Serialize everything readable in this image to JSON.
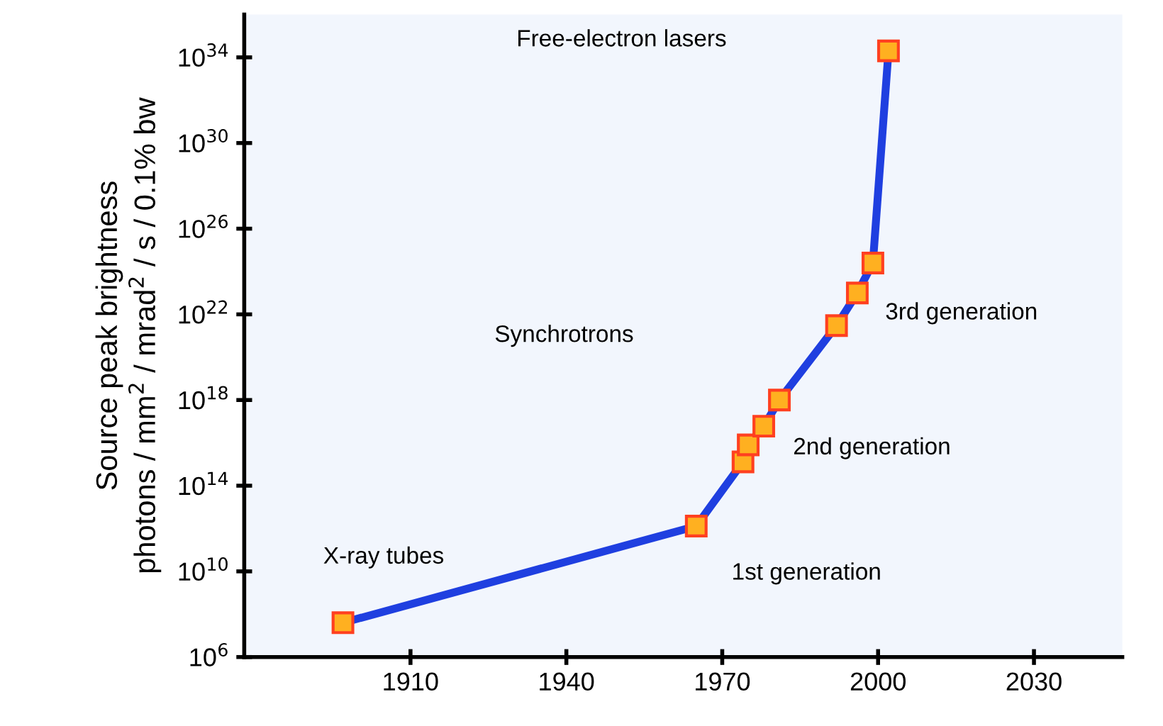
{
  "chart_data": {
    "type": "line",
    "ylabel": "Source peak brightness\nphotons / mm$^{2}$ / mrad$^{2}$ / s / 0.1% bw",
    "x": [
      1897,
      1965,
      1974,
      1975,
      1978,
      1981,
      1992,
      1996,
      1999,
      2002
    ],
    "series": [
      {
        "color": "#1f3fe0",
        "values": [
          40000000.0,
          1300000000000.0,
          1300000000000000.0,
          8000000000000000.0,
          6e+16,
          1e+18,
          3e+21,
          1e+23,
          2.5e+24,
          2e+34
        ]
      }
    ],
    "log": "y",
    "marker": "square",
    "line_style": "solid",
    "grid": false,
    "legend": false,
    "xlim": [
      1878,
      2047
    ],
    "xticks": [
      1910,
      1940,
      1970,
      2000,
      2030
    ],
    "ylim": [
      1000000.0,
      1e+36
    ],
    "yticks": [
      {
        "value": 1000000.0,
        "label": "10$^{6}$"
      },
      {
        "value": 10000000000.0,
        "label": "10$^{10}$"
      },
      {
        "value": 100000000000000.0,
        "label": "10$^{14}$"
      },
      {
        "value": 1e+18,
        "label": "10$^{18}$"
      },
      {
        "value": 1e+22,
        "label": "10$^{22}$"
      },
      {
        "value": 1e+26,
        "label": "10$^{26}$"
      },
      {
        "value": 1e+30,
        "label": "10$^{30}$"
      },
      {
        "value": 1e+34,
        "label": "10$^{34}$"
      }
    ],
    "annotations": [
      "X-ray tubes",
      "Synchrotrons",
      "Free-electron lasers",
      "1st generation",
      "2nd generation",
      "3rd generation"
    ]
  }
}
